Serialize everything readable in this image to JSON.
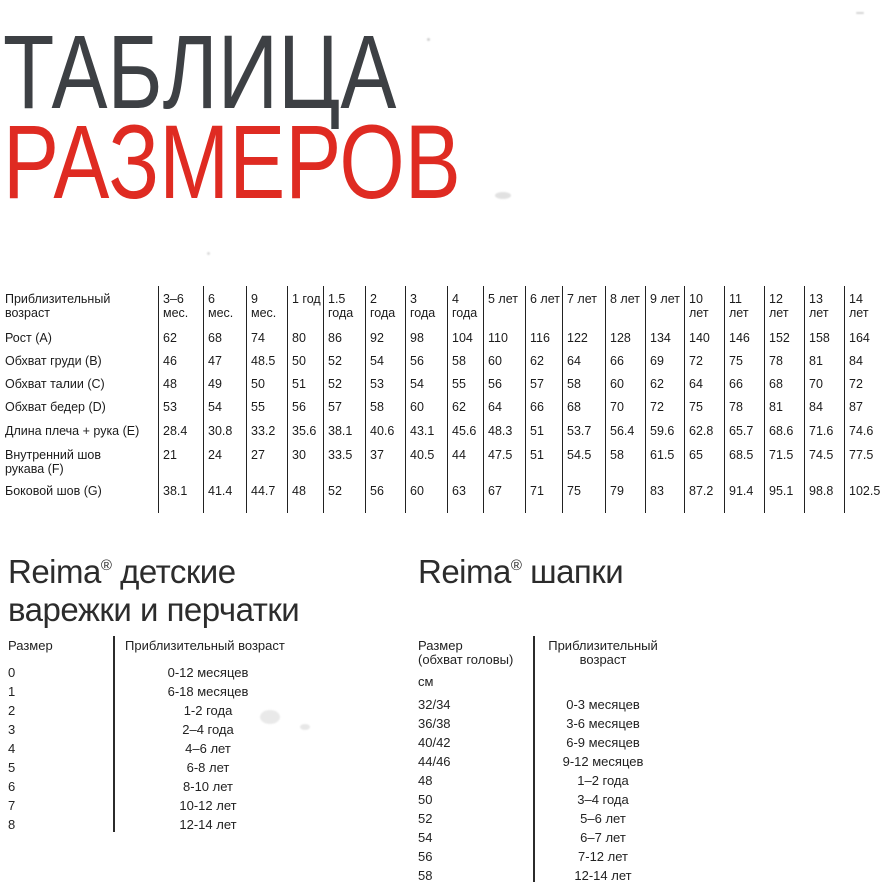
{
  "title": {
    "line1": "ТАБЛИЦА",
    "line2": "РАЗМЕРОВ",
    "dark_color": "#3d4044",
    "red_color": "#df2b22"
  },
  "main_table": {
    "corner": [
      "Приблизительный",
      "возраст"
    ],
    "columns": [
      [
        "3–6",
        "мес."
      ],
      [
        "6",
        "мес."
      ],
      [
        "9",
        "мес."
      ],
      [
        "1 год"
      ],
      [
        "1.5",
        "года"
      ],
      [
        "2",
        "года"
      ],
      [
        "3",
        "года"
      ],
      [
        "4",
        "года"
      ],
      [
        "5 лет"
      ],
      [
        "6 лет"
      ],
      [
        "7 лет"
      ],
      [
        "8 лет"
      ],
      [
        "9 лет"
      ],
      [
        "10",
        "лет"
      ],
      [
        "11",
        "лет"
      ],
      [
        "12",
        "лет"
      ],
      [
        "13",
        "лет"
      ],
      [
        "14",
        "лет"
      ]
    ],
    "rows": [
      {
        "label": [
          "Рост  (A)"
        ],
        "values": [
          "62",
          "68",
          "74",
          "80",
          "86",
          "92",
          "98",
          "104",
          "110",
          "116",
          "122",
          "128",
          "134",
          "140",
          "146",
          "152",
          "158",
          "164"
        ]
      },
      {
        "label": [
          "Обхват груди  (B)"
        ],
        "values": [
          "46",
          "47",
          "48.5",
          "50",
          "52",
          "54",
          "56",
          "58",
          "60",
          "62",
          "64",
          "66",
          "69",
          "72",
          "75",
          "78",
          "81",
          "84"
        ]
      },
      {
        "label": [
          "Обхват талии  (C)"
        ],
        "values": [
          "48",
          "49",
          "50",
          "51",
          "52",
          "53",
          "54",
          "55",
          "56",
          "57",
          "58",
          "60",
          "62",
          "64",
          "66",
          "68",
          "70",
          "72"
        ]
      },
      {
        "label": [
          "Обхват бедер  (D)"
        ],
        "values": [
          "53",
          "54",
          "55",
          "56",
          "57",
          "58",
          "60",
          "62",
          "64",
          "66",
          "68",
          "70",
          "72",
          "75",
          "78",
          "81",
          "84",
          "87"
        ]
      },
      {
        "label": [
          "Длина плеча + рука  (E)"
        ],
        "values": [
          "28.4",
          "30.8",
          "33.2",
          "35.6",
          "38.1",
          "40.6",
          "43.1",
          "45.6",
          "48.3",
          "51",
          "53.7",
          "56.4",
          "59.6",
          "62.8",
          "65.7",
          "68.6",
          "71.6",
          "74.6"
        ]
      },
      {
        "label": [
          "Внутренний шов",
          "рукава  (F)"
        ],
        "values": [
          "21",
          "24",
          "27",
          "30",
          "33.5",
          "37",
          "40.5",
          "44",
          "47.5",
          "51",
          "54.5",
          "58",
          "61.5",
          "65",
          "68.5",
          "71.5",
          "74.5",
          "77.5"
        ]
      },
      {
        "label": [
          "Боковой шов  (G)"
        ],
        "values": [
          "38.1",
          "41.4",
          "44.7",
          "48",
          "52",
          "56",
          "60",
          "63",
          "67",
          "71",
          "75",
          "79",
          "83",
          "87.2",
          "91.4",
          "95.1",
          "98.8",
          "102.5"
        ]
      }
    ]
  },
  "mittens": {
    "title_brand": "Reima",
    "title_reg": "®",
    "title_rest": " детские",
    "title_line2": "варежки и перчатки",
    "col1_header": "Размер",
    "col2_header": "Приблизительный возраст",
    "rows": [
      {
        "size": "0",
        "age": "0-12 месяцев"
      },
      {
        "size": "1",
        "age": "6-18 месяцев"
      },
      {
        "size": "2",
        "age": "1-2 года"
      },
      {
        "size": "3",
        "age": "2–4 года"
      },
      {
        "size": "4",
        "age": "4–6 лет"
      },
      {
        "size": "5",
        "age": "6-8 лет"
      },
      {
        "size": "6",
        "age": "8-10 лет"
      },
      {
        "size": "7",
        "age": "10-12 лет"
      },
      {
        "size": "8",
        "age": "12-14 лет"
      }
    ]
  },
  "hats": {
    "title_brand": "Reima",
    "title_reg": "®",
    "title_rest": " шапки",
    "col1_header_line1": "Размер",
    "col1_header_line2": "(обхват головы)",
    "col1_unit": "см",
    "col2_header_line1": "Приблизительный",
    "col2_header_line2": "возраст",
    "rows": [
      {
        "size": "32/34",
        "age": "0-3 месяцев"
      },
      {
        "size": "36/38",
        "age": "3-6 месяцев"
      },
      {
        "size": "40/42",
        "age": "6-9 месяцев"
      },
      {
        "size": "44/46",
        "age": "9-12 месяцев"
      },
      {
        "size": "48",
        "age": "1–2 года"
      },
      {
        "size": "50",
        "age": "3–4 года"
      },
      {
        "size": "52",
        "age": "5–6 лет"
      },
      {
        "size": "54",
        "age": "6–7 лет"
      },
      {
        "size": "56",
        "age": "7-12 лет"
      },
      {
        "size": "58",
        "age": "12-14 лет"
      }
    ]
  }
}
